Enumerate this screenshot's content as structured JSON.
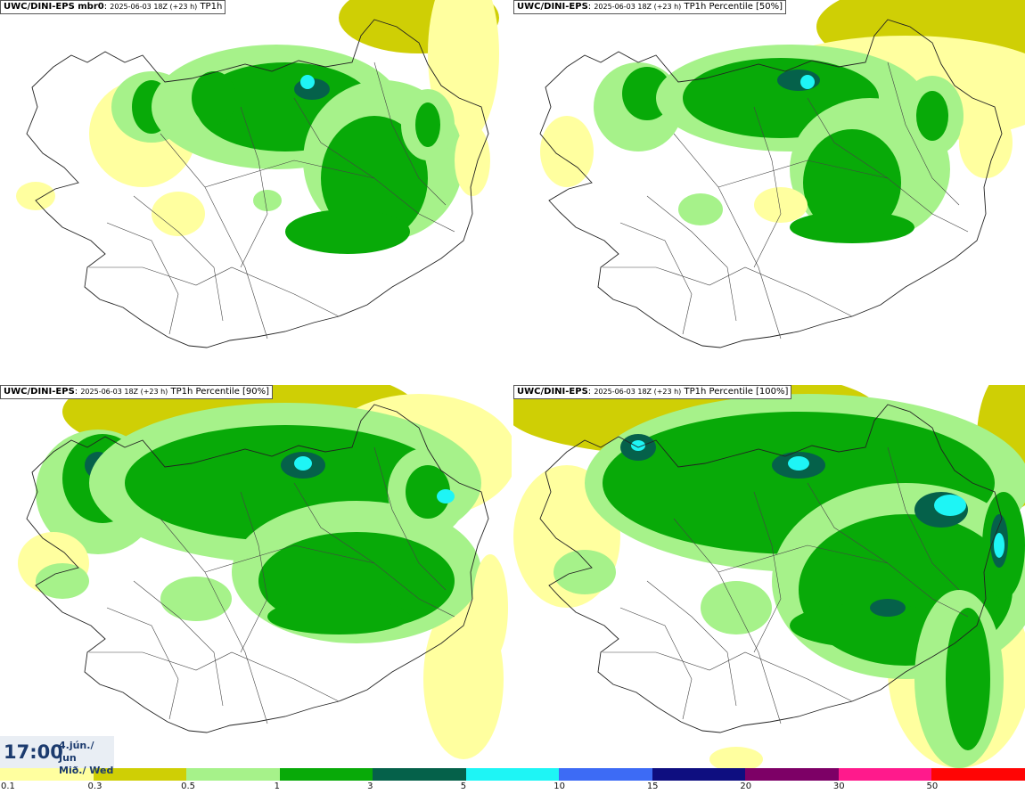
{
  "panels": [
    {
      "source": "UWC/DINI-EPS mbr0",
      "run": "2025-06-03 18Z (+23 h)",
      "field": "TP1h"
    },
    {
      "source": "UWC/DINI-EPS",
      "run": "2025-06-03 18Z (+23 h)",
      "field": "TP1h Percentile [50%]"
    },
    {
      "source": "UWC/DINI-EPS",
      "run": "2025-06-03 18Z (+23 h)",
      "field": "TP1h Percentile [90%]"
    },
    {
      "source": "UWC/DINI-EPS",
      "run": "2025-06-03 18Z (+23 h)",
      "field": "TP1h Percentile [100%]"
    }
  ],
  "valid_time": {
    "time": "17:00",
    "date_line1": "4.jún./ Jun",
    "date_line2": "Mið./ Wed"
  },
  "legend": {
    "labels": [
      "0.1",
      "0.3",
      "0.5",
      "1",
      "3",
      "5",
      "10",
      "15",
      "20",
      "30",
      "50"
    ],
    "colors": [
      "#ffff9f",
      "#cfcf05",
      "#a6f28a",
      "#08aa08",
      "#05614a",
      "#1ef5f5",
      "#3d6bf5",
      "#0e0e80",
      "#7d0066",
      "#ff1a8c",
      "#ff0505"
    ]
  }
}
